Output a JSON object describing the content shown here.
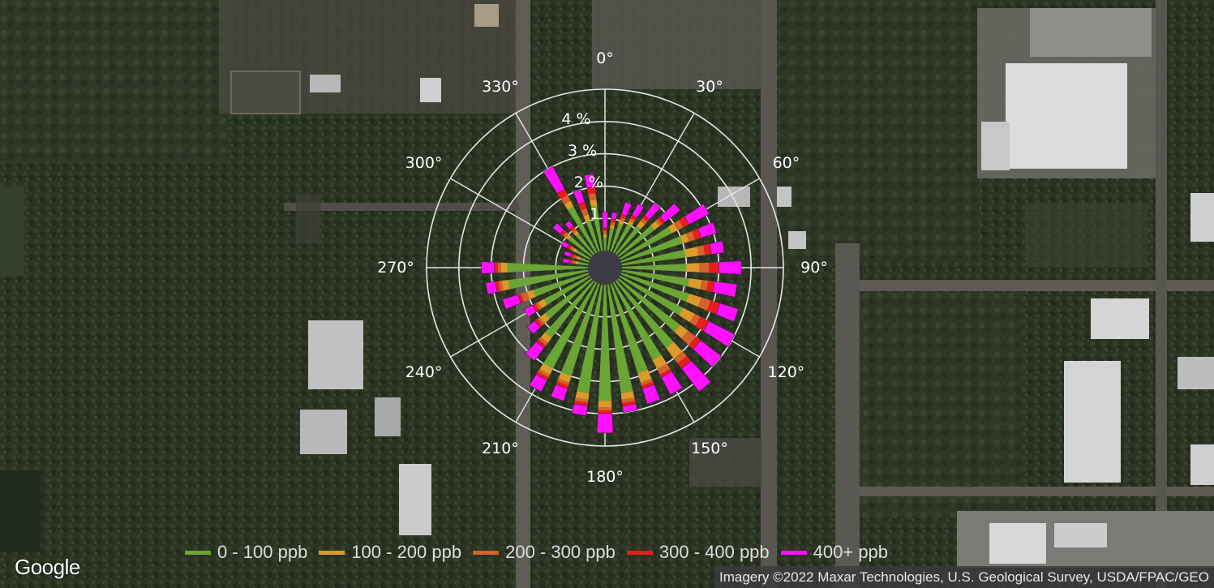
{
  "map": {
    "attribution": "Imagery ©2022 Maxar Technologies, U.S. Geological Survey, USDA/FPAC/GEO",
    "logo_text": "Google"
  },
  "polar_plot": {
    "angle_labels": [
      "0°",
      "30°",
      "60°",
      "90°",
      "120°",
      "150°",
      "180°",
      "210°",
      "240°",
      "270°",
      "300°",
      "330°"
    ],
    "ring_labels": [
      "1",
      "2 %",
      "3 %",
      "4 %"
    ],
    "ring_values": [
      1,
      2,
      3,
      4
    ],
    "rmax": 5,
    "colors": {
      "0 - 100 ppb": "#6aa535",
      "100 - 200 ppb": "#dc9a2c",
      "200 - 300 ppb": "#d2642b",
      "300 - 400 ppb": "#ea1c1c",
      "400+ ppb": "#ff10ff"
    }
  },
  "legend": {
    "items": [
      {
        "label": "0 - 100 ppb",
        "color": "#6aa535"
      },
      {
        "label": "100 - 200 ppb",
        "color": "#dc9a2c"
      },
      {
        "label": "200 - 300 ppb",
        "color": "#d2642b"
      },
      {
        "label": "300 - 400 ppb",
        "color": "#ea1c1c"
      },
      {
        "label": "400+ ppb",
        "color": "#ff10ff"
      }
    ]
  },
  "chart_data": {
    "type": "polar_bar",
    "bin_width_deg": 10,
    "series_names": [
      "0 - 100 ppb",
      "100 - 200 ppb",
      "200 - 300 ppb",
      "300 - 400 ppb",
      "400+ ppb"
    ],
    "directions_deg": [
      0,
      10,
      20,
      30,
      40,
      50,
      60,
      70,
      80,
      90,
      100,
      110,
      120,
      130,
      140,
      150,
      160,
      170,
      180,
      190,
      200,
      210,
      220,
      230,
      240,
      250,
      260,
      270,
      280,
      290,
      300,
      310,
      320,
      330,
      340,
      350
    ],
    "cumulative_percent": [
      [
        0.4,
        0.5,
        0.6,
        0.7,
        1.2
      ],
      [
        0.7,
        0.8,
        0.9,
        1.0,
        1.2
      ],
      [
        0.9,
        1.0,
        1.1,
        1.2,
        1.6
      ],
      [
        1.0,
        1.1,
        1.2,
        1.3,
        1.7
      ],
      [
        1.1,
        1.3,
        1.4,
        1.5,
        2.0
      ],
      [
        1.4,
        1.6,
        1.7,
        1.8,
        2.4
      ],
      [
        1.8,
        2.0,
        2.2,
        2.4,
        3.1
      ],
      [
        2.0,
        2.2,
        2.4,
        2.6,
        3.1
      ],
      [
        2.0,
        2.4,
        2.6,
        2.8,
        3.2
      ],
      [
        2.0,
        2.4,
        2.7,
        3.0,
        3.7
      ],
      [
        2.1,
        2.5,
        2.7,
        2.9,
        3.6
      ],
      [
        2.2,
        2.6,
        2.9,
        3.2,
        3.8
      ],
      [
        2.2,
        2.6,
        2.8,
        3.1,
        4.0
      ],
      [
        2.4,
        2.7,
        3.0,
        3.2,
        4.0
      ],
      [
        2.6,
        3.0,
        3.2,
        3.4,
        4.3
      ],
      [
        2.7,
        3.0,
        3.2,
        3.3,
        3.9
      ],
      [
        2.9,
        3.2,
        3.3,
        3.4,
        3.9
      ],
      [
        3.4,
        3.6,
        3.7,
        3.8,
        4.0
      ],
      [
        3.6,
        3.8,
        3.9,
        4.0,
        4.6
      ],
      [
        3.4,
        3.6,
        3.7,
        3.8,
        4.1
      ],
      [
        3.0,
        3.2,
        3.3,
        3.4,
        3.8
      ],
      [
        3.0,
        3.2,
        3.3,
        3.4,
        3.8
      ],
      [
        2.2,
        2.4,
        2.5,
        2.6,
        3.1
      ],
      [
        1.8,
        2.0,
        2.1,
        2.2,
        2.5
      ],
      [
        1.6,
        1.8,
        1.9,
        2.0,
        2.3
      ],
      [
        1.8,
        2.0,
        2.2,
        2.3,
        2.8
      ],
      [
        2.5,
        2.7,
        2.8,
        2.9,
        3.2
      ],
      [
        2.5,
        2.7,
        2.8,
        2.9,
        3.3
      ],
      [
        0.3,
        0.4,
        0.5,
        0.6,
        0.8
      ],
      [
        0.3,
        0.4,
        0.5,
        0.6,
        0.8
      ],
      [
        0.5,
        0.6,
        0.7,
        0.8,
        1.0
      ],
      [
        0.9,
        1.0,
        1.1,
        1.2,
        1.5
      ],
      [
        0.8,
        0.9,
        1.0,
        1.1,
        1.3
      ],
      [
        1.6,
        1.8,
        2.0,
        2.2,
        3.0
      ],
      [
        1.0,
        1.2,
        1.4,
        1.6,
        2.0
      ],
      [
        1.4,
        1.6,
        1.8,
        2.0,
        2.4
      ]
    ],
    "r_ticks": [
      1,
      2,
      3,
      4
    ],
    "r_max": 5,
    "r_unit": "%",
    "legend_placement": "bottom"
  }
}
